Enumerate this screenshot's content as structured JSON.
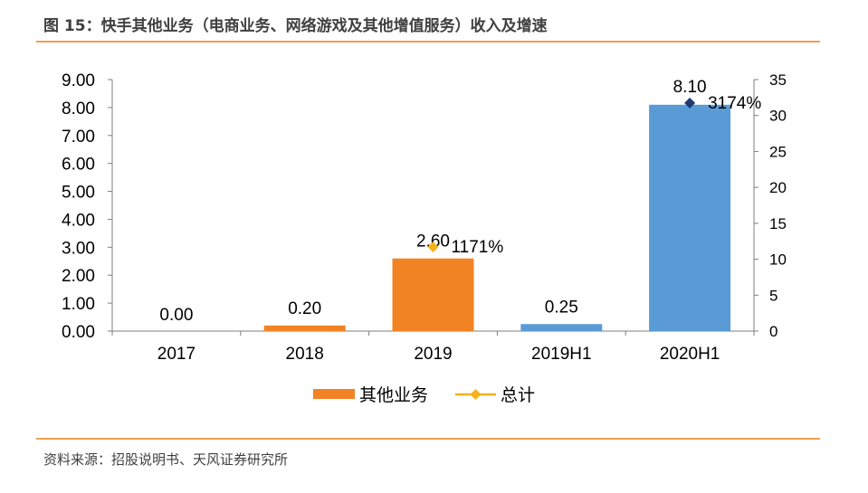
{
  "figure": {
    "title": "图 15：快手其他业务（电商业务、网络游戏及其他增值服务）收入及增速",
    "source": "资料来源：招股说明书、天风证券研究所"
  },
  "chart_data": {
    "type": "bar",
    "categories": [
      "2017",
      "2018",
      "2019",
      "2019H1",
      "2020H1"
    ],
    "series": [
      {
        "name": "其他业务",
        "values": [
          0.0,
          0.2,
          2.6,
          0.25,
          8.1
        ],
        "value_labels": [
          "0.00",
          "0.20",
          "2.60",
          "0.25",
          "8.10"
        ],
        "bar_colors": [
          "#F28325",
          "#F28325",
          "#F28325",
          "#5B9BD5",
          "#5B9BD5"
        ]
      },
      {
        "name": "总计",
        "type": "scatter",
        "axis": "right",
        "points": [
          {
            "category": "2019",
            "value": 11.71,
            "label": "1171%",
            "color": "#F5B21A"
          },
          {
            "category": "2020H1",
            "value": 31.74,
            "label": "3174%",
            "color": "#1F3A73"
          }
        ]
      }
    ],
    "y_left": {
      "ylim": [
        0,
        9
      ],
      "ticks": [
        "0.00",
        "1.00",
        "2.00",
        "3.00",
        "4.00",
        "5.00",
        "6.00",
        "7.00",
        "8.00",
        "9.00"
      ]
    },
    "y_right": {
      "ylim": [
        0,
        35
      ],
      "ticks": [
        "0",
        "5",
        "10",
        "15",
        "20",
        "25",
        "30",
        "35"
      ]
    },
    "legend": {
      "placement": "bottom-center",
      "bar_label": "其他业务",
      "marker_label": "总计",
      "bar_color": "#F28325",
      "marker_color": "#F5B21A"
    },
    "grid": false
  }
}
